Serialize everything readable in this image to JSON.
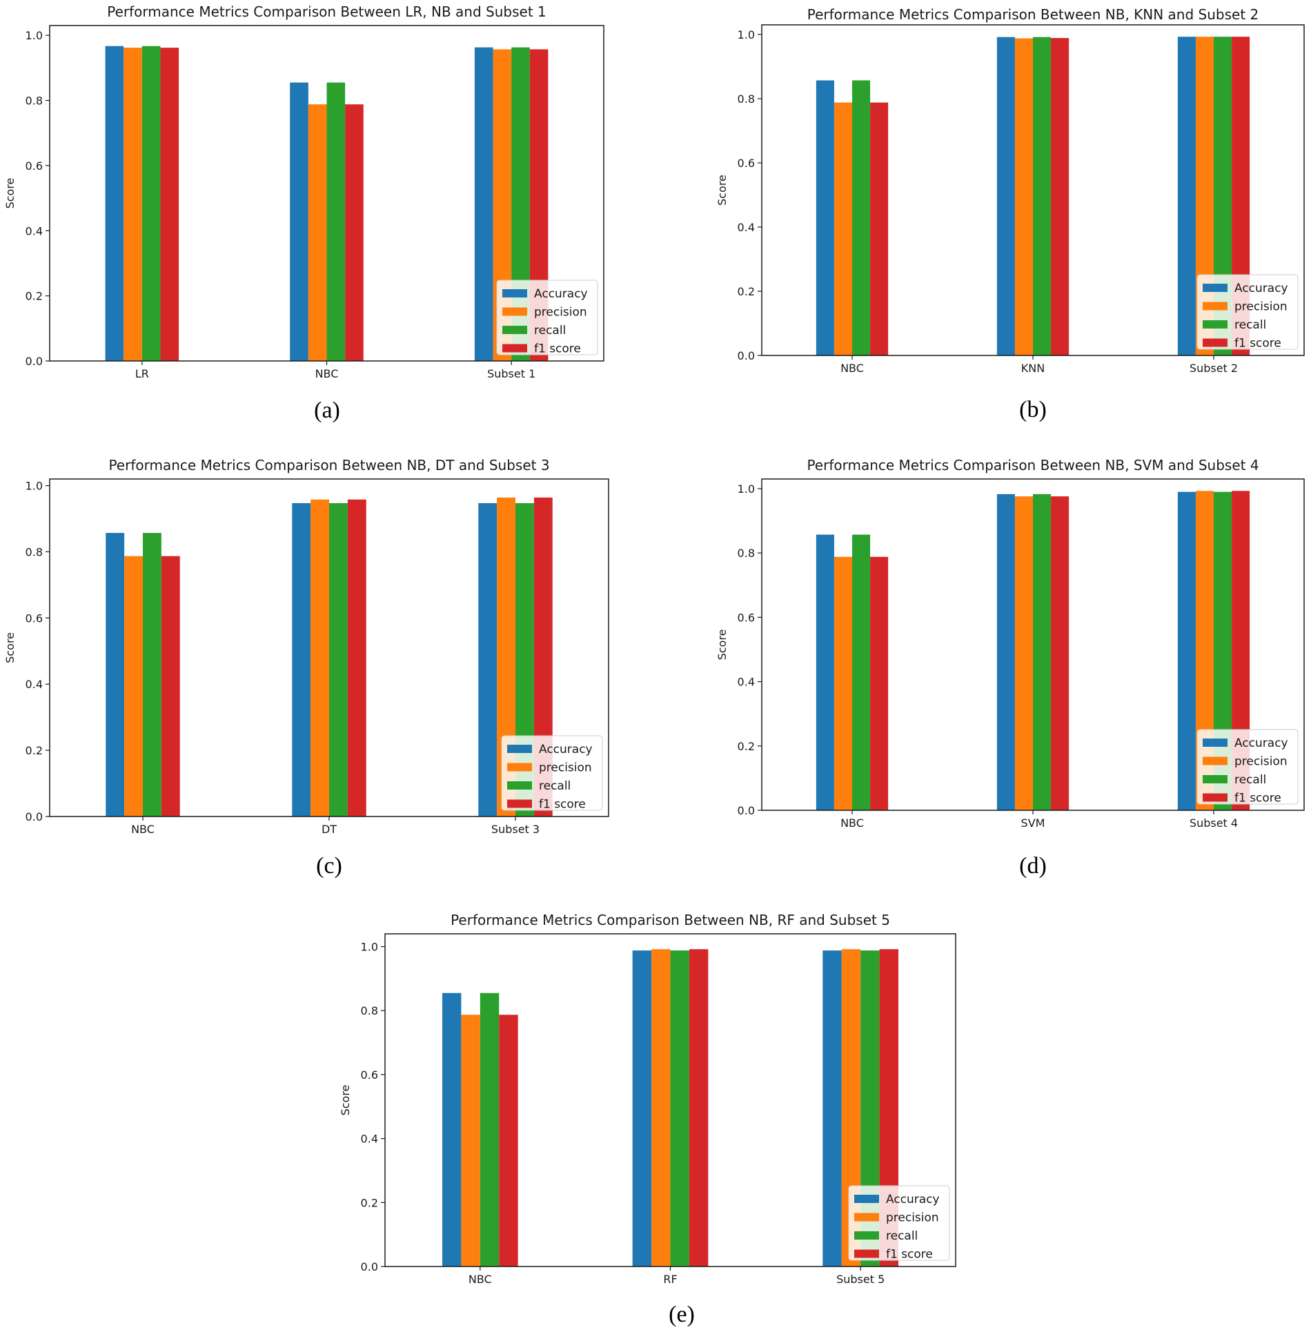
{
  "series_names": [
    "Accuracy",
    "precision",
    "recall",
    "f1 score"
  ],
  "colors": {
    "Accuracy": "#1f77b4",
    "precision": "#ff7f0e",
    "recall": "#2ca02c",
    "f1 score": "#d62728"
  },
  "chart_data": [
    {
      "type": "bar",
      "title": "Performance Metrics Comparison Between LR, NB and Subset 1",
      "caption": "(a)",
      "ylabel": "Score",
      "xlabel": "",
      "ylim": [
        0,
        1.03
      ],
      "yticks": [
        "0.0",
        "0.2",
        "0.4",
        "0.6",
        "0.8",
        "1.0"
      ],
      "categories": [
        "LR",
        "NBC",
        "Subset 1"
      ],
      "legend_position": "lower-right",
      "series": [
        {
          "name": "Accuracy",
          "values": [
            0.967,
            0.855,
            0.963
          ]
        },
        {
          "name": "precision",
          "values": [
            0.962,
            0.788,
            0.957
          ]
        },
        {
          "name": "recall",
          "values": [
            0.967,
            0.855,
            0.963
          ]
        },
        {
          "name": "f1 score",
          "values": [
            0.962,
            0.788,
            0.957
          ]
        }
      ]
    },
    {
      "type": "bar",
      "title": "Performance Metrics Comparison Between NB, KNN and Subset 2",
      "caption": "(b)",
      "ylabel": "Score",
      "xlabel": "",
      "ylim": [
        0,
        1.03
      ],
      "yticks": [
        "0.0",
        "0.2",
        "0.4",
        "0.6",
        "0.8",
        "1.0"
      ],
      "categories": [
        "NBC",
        "KNN",
        "Subset 2"
      ],
      "legend_position": "lower-right",
      "series": [
        {
          "name": "Accuracy",
          "values": [
            0.857,
            0.992,
            0.993
          ]
        },
        {
          "name": "precision",
          "values": [
            0.788,
            0.988,
            0.993
          ]
        },
        {
          "name": "recall",
          "values": [
            0.857,
            0.992,
            0.993
          ]
        },
        {
          "name": "f1 score",
          "values": [
            0.788,
            0.989,
            0.993
          ]
        }
      ]
    },
    {
      "type": "bar",
      "title": "Performance Metrics Comparison Between NB, DT and Subset 3",
      "caption": "(c)",
      "ylabel": "Score",
      "xlabel": "",
      "ylim": [
        0,
        1.02
      ],
      "yticks": [
        "0.0",
        "0.2",
        "0.4",
        "0.6",
        "0.8",
        "1.0"
      ],
      "categories": [
        "NBC",
        "DT",
        "Subset 3"
      ],
      "legend_position": "lower-right",
      "series": [
        {
          "name": "Accuracy",
          "values": [
            0.857,
            0.947,
            0.947
          ]
        },
        {
          "name": "precision",
          "values": [
            0.787,
            0.958,
            0.964
          ]
        },
        {
          "name": "recall",
          "values": [
            0.857,
            0.947,
            0.947
          ]
        },
        {
          "name": "f1 score",
          "values": [
            0.787,
            0.958,
            0.964
          ]
        }
      ]
    },
    {
      "type": "bar",
      "title": "Performance Metrics Comparison Between NB, SVM and Subset 4",
      "caption": "(d)",
      "ylabel": "Score",
      "xlabel": "",
      "ylim": [
        0,
        1.03
      ],
      "yticks": [
        "0.0",
        "0.2",
        "0.4",
        "0.6",
        "0.8",
        "1.0"
      ],
      "categories": [
        "NBC",
        "SVM",
        "Subset 4"
      ],
      "legend_position": "lower-right",
      "series": [
        {
          "name": "Accuracy",
          "values": [
            0.857,
            0.983,
            0.99
          ]
        },
        {
          "name": "precision",
          "values": [
            0.788,
            0.976,
            0.993
          ]
        },
        {
          "name": "recall",
          "values": [
            0.857,
            0.983,
            0.99
          ]
        },
        {
          "name": "f1 score",
          "values": [
            0.788,
            0.976,
            0.993
          ]
        }
      ]
    },
    {
      "type": "bar",
      "title": "Performance Metrics Comparison Between NB, RF and Subset 5",
      "caption": "(e)",
      "ylabel": "Score",
      "xlabel": "",
      "ylim": [
        0,
        1.04
      ],
      "yticks": [
        "0.0",
        "0.2",
        "0.4",
        "0.6",
        "0.8",
        "1.0"
      ],
      "categories": [
        "NBC",
        "RF",
        "Subset 5"
      ],
      "legend_position": "lower-right",
      "series": [
        {
          "name": "Accuracy",
          "values": [
            0.855,
            0.988,
            0.988
          ]
        },
        {
          "name": "precision",
          "values": [
            0.787,
            0.992,
            0.992
          ]
        },
        {
          "name": "recall",
          "values": [
            0.855,
            0.988,
            0.988
          ]
        },
        {
          "name": "f1 score",
          "values": [
            0.787,
            0.992,
            0.992
          ]
        }
      ]
    }
  ]
}
